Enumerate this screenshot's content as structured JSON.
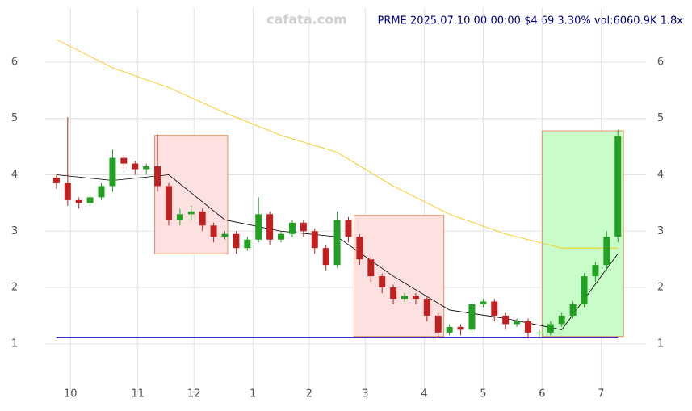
{
  "chart_data": {
    "type": "candlestick",
    "title": "PRME 2025.07.10 00:00:00 $4.69 3.30% vol:6060.9K 1.8x",
    "watermark": "cafata.com",
    "x": [
      2,
      6,
      10,
      14,
      18,
      22,
      26,
      30,
      34,
      38,
      42,
      46,
      50,
      54,
      58,
      62,
      66,
      70,
      74,
      78,
      82,
      86,
      90,
      94,
      98,
      102,
      106,
      110,
      114,
      118,
      122,
      126,
      130,
      134,
      138,
      142,
      146,
      150,
      154,
      158,
      162,
      166,
      170,
      174,
      178,
      182,
      186,
      190,
      194,
      198,
      202
    ],
    "open": [
      3.95,
      3.85,
      3.55,
      3.5,
      3.6,
      3.8,
      4.3,
      4.2,
      4.1,
      4.15,
      3.8,
      3.2,
      3.3,
      3.35,
      3.1,
      2.9,
      2.95,
      2.7,
      2.85,
      3.3,
      2.85,
      2.95,
      3.15,
      3.0,
      2.7,
      2.4,
      3.2,
      2.9,
      2.5,
      2.2,
      2.0,
      1.8,
      1.85,
      1.8,
      1.5,
      1.2,
      1.3,
      1.25,
      1.7,
      1.75,
      1.5,
      1.35,
      1.4,
      1.2,
      1.2,
      1.35,
      1.5,
      1.7,
      2.2,
      2.4,
      2.9
    ],
    "high": [
      4.0,
      5.02,
      3.6,
      3.65,
      3.85,
      4.45,
      4.35,
      4.25,
      4.2,
      4.72,
      3.85,
      3.4,
      3.45,
      3.4,
      3.15,
      3.0,
      3.0,
      2.9,
      3.6,
      3.35,
      3.0,
      3.2,
      3.2,
      3.05,
      2.75,
      3.35,
      3.25,
      2.95,
      2.55,
      2.25,
      2.05,
      1.9,
      1.9,
      1.85,
      1.55,
      1.35,
      1.35,
      1.75,
      1.8,
      1.8,
      1.55,
      1.45,
      1.45,
      1.25,
      1.4,
      1.55,
      1.75,
      2.25,
      2.45,
      3.0,
      4.8
    ],
    "low": [
      3.75,
      3.45,
      3.4,
      3.45,
      3.55,
      3.7,
      4.1,
      4.0,
      4.0,
      3.7,
      3.1,
      3.1,
      3.2,
      3.0,
      2.8,
      2.85,
      2.6,
      2.65,
      2.8,
      2.75,
      2.8,
      2.9,
      2.9,
      2.6,
      2.3,
      2.35,
      2.8,
      2.4,
      2.1,
      1.9,
      1.7,
      1.75,
      1.7,
      1.4,
      1.1,
      1.15,
      1.15,
      1.2,
      1.65,
      1.4,
      1.25,
      1.3,
      1.1,
      1.1,
      1.15,
      1.3,
      1.45,
      1.65,
      2.1,
      2.3,
      2.8
    ],
    "close": [
      3.85,
      3.55,
      3.5,
      3.6,
      3.8,
      4.3,
      4.2,
      4.1,
      4.15,
      3.8,
      3.2,
      3.3,
      3.35,
      3.1,
      2.9,
      2.95,
      2.7,
      2.85,
      3.3,
      2.85,
      2.95,
      3.15,
      3.0,
      2.7,
      2.4,
      3.2,
      2.9,
      2.5,
      2.2,
      2.0,
      1.8,
      1.85,
      1.8,
      1.5,
      1.2,
      1.3,
      1.25,
      1.7,
      1.75,
      1.5,
      1.35,
      1.4,
      1.2,
      1.2,
      1.35,
      1.5,
      1.7,
      2.2,
      2.4,
      2.9,
      4.69
    ],
    "up_color": "#22a022",
    "down_color": "#c02020",
    "lines": [
      {
        "color": "#f5c400",
        "x": [
          2,
          22,
          42,
          62,
          82,
          102,
          122,
          142,
          162,
          182,
          202
        ],
        "values": [
          6.4,
          5.9,
          5.55,
          5.1,
          4.7,
          4.4,
          3.8,
          3.3,
          2.95,
          2.7,
          2.7
        ]
      },
      {
        "color": "#000000",
        "x": [
          2,
          22,
          42,
          62,
          82,
          102,
          122,
          142,
          162,
          182,
          202
        ],
        "values": [
          4.0,
          3.9,
          4.0,
          3.2,
          3.0,
          2.9,
          2.2,
          1.6,
          1.45,
          1.25,
          2.6
        ]
      }
    ],
    "zones": [
      {
        "x0": 37,
        "x1": 63,
        "y0": 2.6,
        "y1": 4.7,
        "color": "#fde0e0"
      },
      {
        "x0": 108,
        "x1": 140,
        "y0": 1.13,
        "y1": 3.28,
        "color": "#fde0e0"
      },
      {
        "x0": 175,
        "x1": 204,
        "y0": 1.13,
        "y1": 4.78,
        "color": "#c8fcc8"
      }
    ],
    "hline": 1.12,
    "xlim": [
      -2,
      212
    ],
    "ylim": [
      0.08,
      6.96
    ],
    "xticks": [
      {
        "value": 7,
        "label": "10"
      },
      {
        "value": 31,
        "label": "11"
      },
      {
        "value": 51,
        "label": "12"
      },
      {
        "value": 72,
        "label": "1"
      },
      {
        "value": 92,
        "label": "2"
      },
      {
        "value": 112,
        "label": "3"
      },
      {
        "value": 133,
        "label": "4"
      },
      {
        "value": 154,
        "label": "5"
      },
      {
        "value": 175,
        "label": "6"
      },
      {
        "value": 196,
        "label": "7"
      }
    ],
    "yticks": [
      1,
      2,
      3,
      4,
      5,
      6
    ],
    "grid": true
  }
}
